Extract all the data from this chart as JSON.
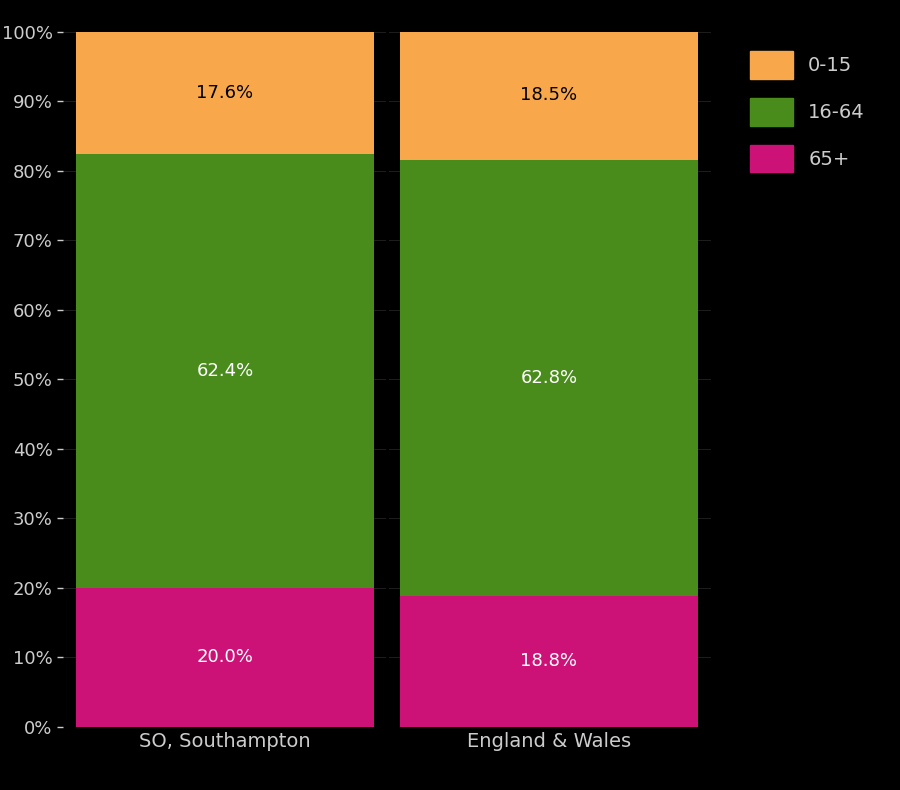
{
  "categories": [
    "SO, Southampton",
    "England & Wales"
  ],
  "segments": {
    "65+": [
      20.0,
      18.8
    ],
    "16-64": [
      62.4,
      62.8
    ],
    "0-15": [
      17.6,
      18.5
    ]
  },
  "colors": {
    "65+": "#CC1177",
    "16-64": "#4a8c1c",
    "0-15": "#F8A84B"
  },
  "label_colors": {
    "65+": "white",
    "16-64": "white",
    "0-15": "black"
  },
  "background_color": "#000000",
  "text_color": "#cccccc",
  "yticks": [
    0,
    10,
    20,
    30,
    40,
    50,
    60,
    70,
    80,
    90,
    100
  ],
  "ytick_labels": [
    "0%",
    "10%",
    "20%",
    "30%",
    "40%",
    "50%",
    "60%",
    "70%",
    "80%",
    "90%",
    "100%"
  ],
  "legend_labels": [
    "0-15",
    "16-64",
    "65+"
  ],
  "bar_width": 0.92,
  "figsize": [
    9.0,
    7.9
  ],
  "dpi": 100
}
